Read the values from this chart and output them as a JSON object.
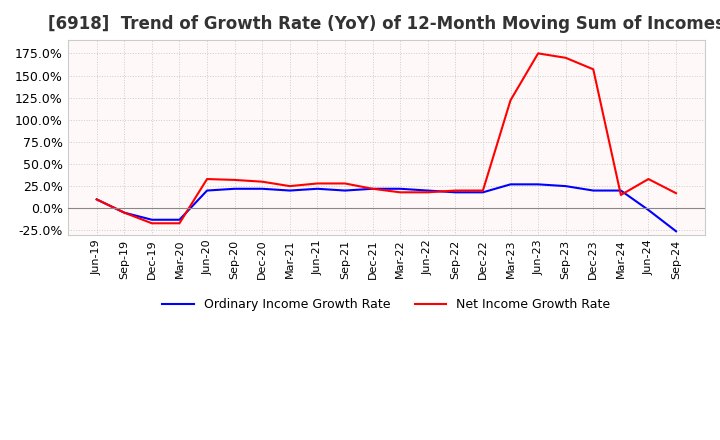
{
  "title": "[6918]  Trend of Growth Rate (YoY) of 12-Month Moving Sum of Incomes",
  "title_fontsize": 12,
  "ylabel_fontsize": 9,
  "xlabel_fontsize": 8,
  "ylim": [
    -0.3,
    0.195
  ],
  "yticks": [
    -0.25,
    0.0,
    0.25,
    0.5,
    0.75,
    1.0,
    1.25,
    1.5,
    1.75
  ],
  "dates": [
    "Jun-19",
    "Sep-19",
    "Dec-19",
    "Mar-20",
    "Jun-20",
    "Sep-20",
    "Dec-20",
    "Mar-21",
    "Jun-21",
    "Sep-21",
    "Dec-21",
    "Mar-22",
    "Jun-22",
    "Sep-22",
    "Dec-22",
    "Mar-23",
    "Jun-23",
    "Sep-23",
    "Dec-23",
    "Mar-24",
    "Jun-24",
    "Sep-24"
  ],
  "ordinary_income": [
    0.1,
    -0.05,
    -0.13,
    -0.13,
    0.2,
    0.22,
    0.22,
    0.2,
    0.22,
    0.2,
    0.22,
    0.22,
    0.2,
    0.18,
    0.18,
    0.27,
    0.27,
    0.25,
    0.2,
    0.2,
    -0.02,
    -0.26
  ],
  "net_income": [
    0.1,
    -0.05,
    -0.17,
    -0.17,
    0.33,
    0.32,
    0.3,
    0.25,
    0.28,
    0.28,
    0.22,
    0.18,
    0.18,
    0.2,
    0.2,
    1.22,
    1.75,
    1.7,
    1.57,
    0.15,
    0.33,
    0.17
  ],
  "ordinary_color": "#0000ff",
  "net_color": "#ff0000",
  "grid_color": "#cccccc",
  "zero_line_color": "#888888",
  "background_color": "#ffffff",
  "plot_bg_color": "#fff8f8",
  "legend_labels": [
    "Ordinary Income Growth Rate",
    "Net Income Growth Rate"
  ]
}
